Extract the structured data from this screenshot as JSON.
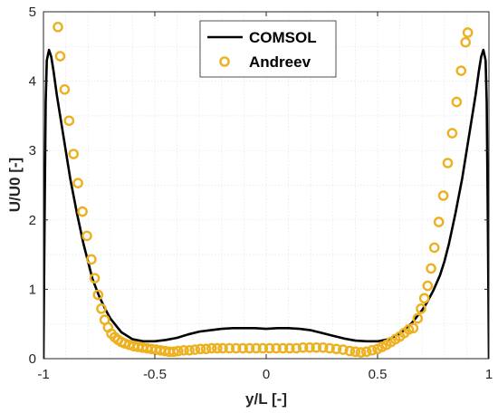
{
  "chart_data": {
    "type": "line",
    "xlabel": "y/L [-]",
    "ylabel": "U/U0 [-]",
    "xlim": [
      -1,
      1
    ],
    "ylim": [
      0,
      5
    ],
    "xticks": [
      -1,
      -0.5,
      0,
      0.5,
      1
    ],
    "xtick_labels": [
      "-1",
      "-0.5",
      "0",
      "0.5",
      "1"
    ],
    "yticks": [
      0,
      1,
      2,
      3,
      4,
      5
    ],
    "ytick_labels": [
      "0",
      "1",
      "2",
      "3",
      "4",
      "5"
    ],
    "grid": true,
    "legend_position": "top-center",
    "series": [
      {
        "name": "COMSOL",
        "kind": "line",
        "color": "#000000",
        "x": [
          -1.0,
          -0.995,
          -0.99,
          -0.985,
          -0.975,
          -0.965,
          -0.955,
          -0.94,
          -0.92,
          -0.9,
          -0.88,
          -0.85,
          -0.82,
          -0.8,
          -0.78,
          -0.75,
          -0.72,
          -0.7,
          -0.65,
          -0.6,
          -0.55,
          -0.5,
          -0.45,
          -0.4,
          -0.35,
          -0.3,
          -0.25,
          -0.2,
          -0.15,
          -0.1,
          -0.05,
          0.0,
          0.05,
          0.1,
          0.15,
          0.2,
          0.25,
          0.3,
          0.35,
          0.4,
          0.45,
          0.5,
          0.55,
          0.6,
          0.65,
          0.7,
          0.72,
          0.75,
          0.78,
          0.8,
          0.82,
          0.85,
          0.88,
          0.9,
          0.92,
          0.94,
          0.955,
          0.965,
          0.975,
          0.985,
          0.99,
          0.995,
          1.0
        ],
        "y": [
          0.0,
          2.0,
          3.7,
          4.3,
          4.45,
          4.35,
          4.15,
          3.8,
          3.4,
          3.0,
          2.6,
          2.1,
          1.65,
          1.4,
          1.15,
          0.9,
          0.7,
          0.58,
          0.38,
          0.28,
          0.25,
          0.25,
          0.27,
          0.3,
          0.35,
          0.39,
          0.41,
          0.43,
          0.44,
          0.44,
          0.44,
          0.43,
          0.44,
          0.44,
          0.43,
          0.41,
          0.37,
          0.33,
          0.29,
          0.26,
          0.25,
          0.25,
          0.28,
          0.36,
          0.5,
          0.7,
          0.8,
          0.98,
          1.2,
          1.4,
          1.65,
          2.1,
          2.6,
          3.0,
          3.4,
          3.8,
          4.15,
          4.35,
          4.45,
          4.3,
          3.7,
          2.0,
          0.0
        ]
      },
      {
        "name": "Andreev",
        "kind": "scatter",
        "color": "#EDB120",
        "x": [
          -0.935,
          -0.925,
          -0.905,
          -0.885,
          -0.865,
          -0.845,
          -0.825,
          -0.805,
          -0.785,
          -0.77,
          -0.755,
          -0.74,
          -0.725,
          -0.71,
          -0.695,
          -0.68,
          -0.665,
          -0.65,
          -0.635,
          -0.615,
          -0.595,
          -0.575,
          -0.555,
          -0.535,
          -0.515,
          -0.495,
          -0.475,
          -0.455,
          -0.435,
          -0.415,
          -0.395,
          -0.37,
          -0.345,
          -0.32,
          -0.295,
          -0.27,
          -0.245,
          -0.22,
          -0.195,
          -0.165,
          -0.135,
          -0.105,
          -0.075,
          -0.045,
          -0.015,
          0.015,
          0.045,
          0.075,
          0.105,
          0.135,
          0.165,
          0.195,
          0.225,
          0.255,
          0.285,
          0.315,
          0.345,
          0.375,
          0.4,
          0.425,
          0.45,
          0.475,
          0.5,
          0.52,
          0.54,
          0.56,
          0.58,
          0.6,
          0.62,
          0.64,
          0.66,
          0.68,
          0.695,
          0.71,
          0.725,
          0.74,
          0.755,
          0.775,
          0.795,
          0.815,
          0.835,
          0.855,
          0.875,
          0.895,
          0.905
        ],
        "y": [
          4.78,
          4.36,
          3.88,
          3.43,
          2.95,
          2.53,
          2.12,
          1.77,
          1.43,
          1.16,
          0.92,
          0.72,
          0.56,
          0.45,
          0.36,
          0.31,
          0.27,
          0.24,
          0.22,
          0.2,
          0.18,
          0.17,
          0.16,
          0.15,
          0.14,
          0.13,
          0.12,
          0.11,
          0.1,
          0.1,
          0.11,
          0.12,
          0.12,
          0.13,
          0.14,
          0.14,
          0.15,
          0.15,
          0.15,
          0.15,
          0.15,
          0.15,
          0.15,
          0.15,
          0.15,
          0.15,
          0.15,
          0.15,
          0.15,
          0.15,
          0.16,
          0.16,
          0.16,
          0.16,
          0.15,
          0.14,
          0.13,
          0.11,
          0.1,
          0.09,
          0.1,
          0.12,
          0.14,
          0.17,
          0.2,
          0.24,
          0.28,
          0.32,
          0.37,
          0.42,
          0.44,
          0.58,
          0.72,
          0.87,
          1.05,
          1.3,
          1.6,
          1.97,
          2.35,
          2.82,
          3.25,
          3.7,
          4.15,
          4.56,
          4.7
        ]
      }
    ]
  }
}
